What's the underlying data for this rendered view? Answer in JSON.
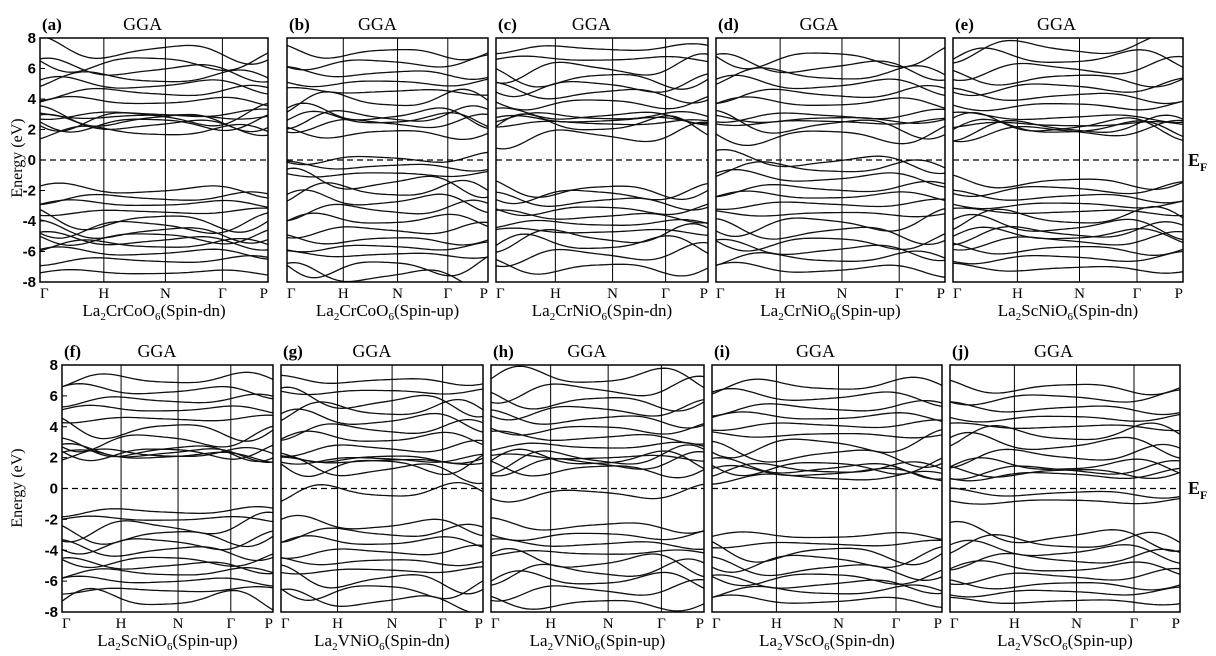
{
  "figure": {
    "ylabel": "Energy (eV)",
    "fermi_label": "E",
    "fermi_sub": "F"
  },
  "chart_data": [
    {
      "type": "line",
      "panel": "(a)",
      "method": "GGA",
      "formula": [
        "La",
        "2",
        "CrCoO",
        "6"
      ],
      "spin": "(Spin-dn)",
      "ylim": [
        -8,
        8
      ],
      "yticks": [
        -8,
        -6,
        -4,
        -2,
        0,
        2,
        4,
        6,
        8
      ],
      "xticks": [
        "Γ",
        "H",
        "N",
        "Γ",
        "P"
      ],
      "fermi": 0,
      "bands": [
        -7.4,
        -6.6,
        -6.1,
        -5.6,
        -5.3,
        -5.0,
        -4.7,
        -4.3,
        -3.9,
        -3.4,
        -2.9,
        -2.5,
        -2.0,
        1.8,
        2.3,
        2.5,
        2.7,
        2.8,
        2.9,
        3.0,
        3.8,
        4.4,
        4.9,
        5.3,
        5.9,
        6.5,
        7.2
      ],
      "series": []
    },
    {
      "type": "line",
      "panel": "(b)",
      "method": "GGA",
      "formula": [
        "La",
        "2",
        "CrCoO",
        "6"
      ],
      "spin": "(Spin-up)",
      "ylim": [
        -8,
        8
      ],
      "yticks": [],
      "xticks": [
        "Γ",
        "H",
        "N",
        "Γ",
        "P"
      ],
      "fermi": 0,
      "bands": [
        -7.6,
        -6.9,
        -6.2,
        -5.7,
        -5.2,
        -4.6,
        -4.0,
        -3.3,
        -2.7,
        -2.1,
        -1.5,
        -0.9,
        -0.4,
        0.1,
        1.8,
        2.4,
        2.6,
        2.8,
        2.9,
        3.8,
        4.5,
        5.1,
        5.7,
        6.4,
        7.1
      ],
      "series": []
    },
    {
      "type": "line",
      "panel": "(c)",
      "method": "GGA",
      "formula": [
        "La",
        "2",
        "CrNiO",
        "6"
      ],
      "spin": "(Spin-dn)",
      "ylim": [
        -8,
        8
      ],
      "yticks": [],
      "xticks": [
        "Γ",
        "H",
        "N",
        "Γ",
        "P"
      ],
      "fermi": 0,
      "bands": [
        -7.0,
        -6.2,
        -5.6,
        -5.1,
        -4.7,
        -4.2,
        -3.7,
        -3.2,
        -2.7,
        -2.2,
        -1.9,
        1.6,
        2.2,
        2.4,
        2.6,
        2.8,
        2.9,
        3.8,
        4.4,
        4.9,
        5.4,
        6.0,
        6.6,
        7.3
      ],
      "series": []
    },
    {
      "type": "line",
      "panel": "(d)",
      "method": "GGA",
      "formula": [
        "La",
        "2",
        "CrNiO",
        "6"
      ],
      "spin": "(Spin-up)",
      "ylim": [
        -8,
        8
      ],
      "yticks": [],
      "xticks": [
        "Γ",
        "H",
        "N",
        "Γ",
        "P"
      ],
      "fermi": 0,
      "bands": [
        -7.2,
        -6.5,
        -5.9,
        -5.3,
        -4.7,
        -4.1,
        -3.5,
        -2.9,
        -2.4,
        -1.9,
        -1.2,
        -0.6,
        -0.1,
        1.7,
        2.3,
        2.5,
        2.7,
        2.9,
        3.7,
        4.3,
        4.9,
        5.5,
        6.1,
        6.8
      ],
      "series": []
    },
    {
      "type": "line",
      "panel": "(e)",
      "method": "GGA",
      "formula": [
        "La",
        "2",
        "ScNiO",
        "6"
      ],
      "spin": "(Spin-dn)",
      "ylim": [
        -8,
        8
      ],
      "yticks": [],
      "xticks": [
        "Γ",
        "H",
        "N",
        "Γ",
        "P"
      ],
      "fermi": 0,
      "bands": [
        -7.1,
        -6.4,
        -5.8,
        -5.3,
        -5.0,
        -4.8,
        -4.4,
        -3.9,
        -3.4,
        -2.9,
        -2.4,
        -1.9,
        -1.4,
        1.9,
        2.0,
        2.1,
        2.2,
        2.3,
        2.8,
        3.6,
        4.2,
        4.8,
        5.4,
        6.0,
        6.6,
        7.3
      ],
      "series": []
    },
    {
      "type": "line",
      "panel": "(f)",
      "method": "GGA",
      "formula": [
        "La",
        "2",
        "ScNiO",
        "6"
      ],
      "spin": "(Spin-up)",
      "ylim": [
        -8,
        8
      ],
      "yticks": [
        -8,
        -6,
        -4,
        -2,
        0,
        2,
        4,
        6,
        8
      ],
      "xticks": [
        "Γ",
        "H",
        "N",
        "Γ",
        "P"
      ],
      "fermi": 0,
      "bands": [
        -7.3,
        -6.6,
        -6.0,
        -5.5,
        -5.0,
        -4.6,
        -4.0,
        -3.5,
        -3.0,
        -2.5,
        -2.0,
        -1.5,
        2.1,
        2.2,
        2.3,
        2.4,
        2.5,
        3.2,
        3.9,
        4.5,
        5.1,
        5.7,
        6.3,
        7.0
      ],
      "series": []
    },
    {
      "type": "line",
      "panel": "(g)",
      "method": "GGA",
      "formula": [
        "La",
        "2",
        "VNiO",
        "6"
      ],
      "spin": "(Spin-dn)",
      "ylim": [
        -8,
        8
      ],
      "yticks": [],
      "xticks": [
        "Γ",
        "H",
        "N",
        "Γ",
        "P"
      ],
      "fermi": 0,
      "bands": [
        -7.3,
        -6.5,
        -5.9,
        -5.3,
        -4.7,
        -4.1,
        -3.5,
        -2.9,
        -2.4,
        -0.3,
        1.2,
        1.6,
        1.8,
        1.9,
        2.0,
        2.6,
        3.2,
        3.8,
        4.4,
        5.0,
        5.6,
        6.3,
        7.0
      ],
      "series": []
    },
    {
      "type": "line",
      "panel": "(h)",
      "method": "GGA",
      "formula": [
        "La",
        "2",
        "VNiO",
        "6"
      ],
      "spin": "(Spin-up)",
      "ylim": [
        -8,
        8
      ],
      "yticks": [],
      "xticks": [
        "Γ",
        "H",
        "N",
        "Γ",
        "P"
      ],
      "fermi": 0,
      "bands": [
        -7.4,
        -6.6,
        -6.0,
        -5.4,
        -4.8,
        -4.2,
        -3.6,
        -3.0,
        -2.4,
        -0.3,
        1.3,
        1.6,
        1.8,
        1.9,
        2.0,
        2.7,
        3.3,
        3.9,
        4.5,
        5.1,
        5.7,
        6.4,
        7.1
      ],
      "series": []
    },
    {
      "type": "line",
      "panel": "(i)",
      "method": "GGA",
      "formula": [
        "La",
        "2",
        "VScO",
        "6"
      ],
      "spin": "(Spin-dn)",
      "ylim": [
        -8,
        8
      ],
      "yticks": [],
      "xticks": [
        "Γ",
        "H",
        "N",
        "Γ",
        "P"
      ],
      "fermi": 0,
      "bands": [
        -7.3,
        -6.7,
        -6.2,
        -5.7,
        -5.2,
        -4.6,
        -4.1,
        -3.6,
        -3.1,
        0.7,
        1.0,
        1.2,
        1.3,
        1.5,
        2.2,
        2.9,
        3.5,
        4.1,
        4.6,
        5.2,
        5.9,
        6.6
      ],
      "series": []
    },
    {
      "type": "line",
      "panel": "(j)",
      "method": "GGA",
      "formula": [
        "La",
        "2",
        "VScO",
        "6"
      ],
      "spin": "(Spin-up)",
      "ylim": [
        -8,
        8
      ],
      "yticks": [],
      "xticks": [
        "Γ",
        "H",
        "N",
        "Γ",
        "P"
      ],
      "fermi": 0,
      "bands": [
        -7.3,
        -6.7,
        -6.2,
        -5.7,
        -5.2,
        -4.6,
        -4.1,
        -3.6,
        -3.1,
        -0.8,
        -0.3,
        0.9,
        1.1,
        1.2,
        1.4,
        2.1,
        2.8,
        3.4,
        4.0,
        4.6,
        5.2,
        5.9,
        6.6
      ],
      "series": []
    }
  ],
  "colors": {
    "bands": "#111111",
    "axis": "#000000",
    "fermi": "#000000",
    "background": "#ffffff"
  }
}
